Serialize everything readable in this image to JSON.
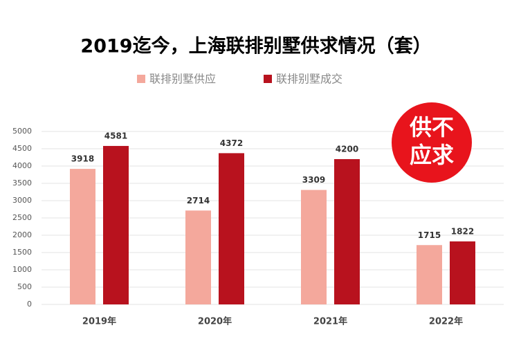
{
  "chart_data": {
    "type": "bar",
    "title": "2019迄今，上海联排别墅供求情况（套）",
    "categories": [
      "2019年",
      "2020年",
      "2021年",
      "2022年"
    ],
    "series": [
      {
        "name": "联排别墅供应",
        "color": "#f4a89c",
        "values": [
          3918,
          2714,
          3309,
          1715
        ]
      },
      {
        "name": "联排别墅成交",
        "color": "#b8121e",
        "values": [
          4581,
          4372,
          4200,
          1822
        ]
      }
    ],
    "ylim": [
      0,
      5000
    ],
    "yticks": [
      0,
      500,
      1000,
      1500,
      2000,
      2500,
      3000,
      3500,
      4000,
      4500,
      5000
    ],
    "grid": true,
    "annotation": [
      "供不",
      "应求"
    ],
    "annotation_color": "#e8141c"
  }
}
